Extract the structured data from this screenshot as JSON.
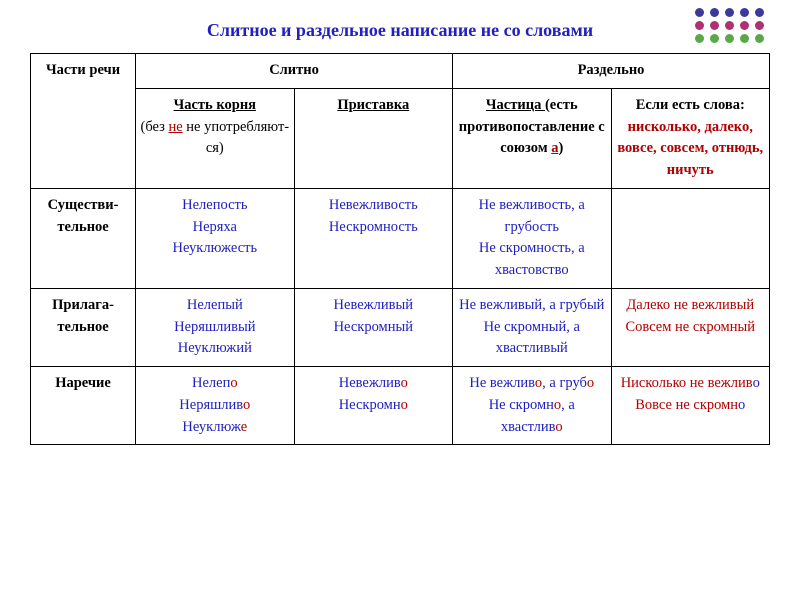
{
  "title": "Слитное и раздельное написание не со словами",
  "title_color": "#2020c0",
  "headers": {
    "parts": "Части речи",
    "together": "Слитно",
    "separate": "Раздельно",
    "root_label": "Часть корня",
    "root_note_open": "(без ",
    "root_note_ne": "не",
    "root_note_close": " не употребляют-ся)",
    "prefix": "Приставка",
    "particle_label": "Частица ",
    "particle_note_open": "(есть противопоставление с союзом ",
    "particle_note_a": "а",
    "particle_note_close": ")",
    "words_label": "Если есть слова:",
    "words_list": "нисколько, далеко, вовсе, совсем, отнюдь, ничуть"
  },
  "rows": {
    "noun": {
      "label": "Существи-тельное",
      "root": [
        "Нелепость",
        "Неряха",
        "Неуклюжесть"
      ],
      "prefix": [
        "Невежливость",
        "Нескромность"
      ],
      "particle": [
        "Не вежливость, а грубость",
        "Не скромность, а хвастовство"
      ],
      "words": ""
    },
    "adj": {
      "label": "Прилага-тельное",
      "root": [
        "Нелепый",
        "Неряшливый",
        "Неуклюжий"
      ],
      "prefix": [
        "Невежливый",
        "Нескромный"
      ],
      "particle": [
        "Не вежливый, а грубый",
        "Не скромный, а хвастливый"
      ],
      "words": [
        "Далеко не вежливый",
        "Совсем не скромный"
      ]
    },
    "adv": {
      "label": "Наречие"
    }
  }
}
